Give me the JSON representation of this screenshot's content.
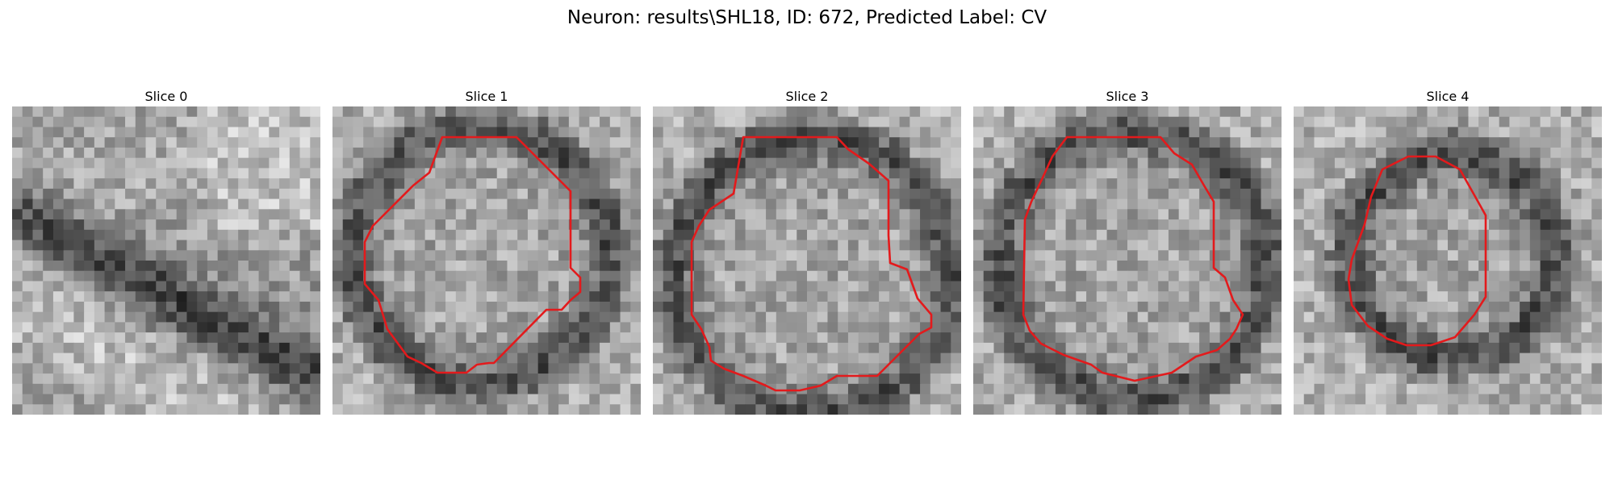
{
  "figure": {
    "title": "Neuron: results\\SHL18, ID: 672, Predicted Label: CV",
    "contour_color": "#e31a1c",
    "panels": [
      {
        "label": "Slice 0",
        "has_contour": false,
        "image": "grayscale-em-patch-membrane-diagonal"
      },
      {
        "label": "Slice 1",
        "has_contour": true,
        "image": "grayscale-em-patch-vesicle"
      },
      {
        "label": "Slice 2",
        "has_contour": true,
        "image": "grayscale-em-patch-vesicle"
      },
      {
        "label": "Slice 3",
        "has_contour": true,
        "image": "grayscale-em-patch-vesicle"
      },
      {
        "label": "Slice 4",
        "has_contour": true,
        "image": "grayscale-em-patch-vesicle"
      }
    ]
  }
}
